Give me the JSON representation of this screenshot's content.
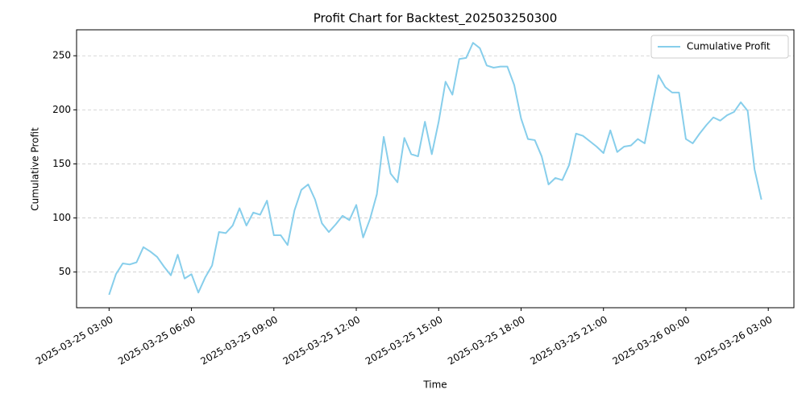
{
  "chart_data": {
    "type": "line",
    "title": "Profit Chart for Backtest_202503250300",
    "xlabel": "Time",
    "ylabel": "Cumulative Profit",
    "x": [
      "2025-03-25 03:00",
      "2025-03-25 03:15",
      "2025-03-25 03:30",
      "2025-03-25 03:45",
      "2025-03-25 04:00",
      "2025-03-25 04:15",
      "2025-03-25 04:30",
      "2025-03-25 04:45",
      "2025-03-25 05:00",
      "2025-03-25 05:15",
      "2025-03-25 05:30",
      "2025-03-25 05:45",
      "2025-03-25 06:00",
      "2025-03-25 06:15",
      "2025-03-25 06:30",
      "2025-03-25 06:45",
      "2025-03-25 07:00",
      "2025-03-25 07:15",
      "2025-03-25 07:30",
      "2025-03-25 07:45",
      "2025-03-25 08:00",
      "2025-03-25 08:15",
      "2025-03-25 08:30",
      "2025-03-25 08:45",
      "2025-03-25 09:00",
      "2025-03-25 09:15",
      "2025-03-25 09:30",
      "2025-03-25 09:45",
      "2025-03-25 10:00",
      "2025-03-25 10:15",
      "2025-03-25 10:30",
      "2025-03-25 10:45",
      "2025-03-25 11:00",
      "2025-03-25 11:15",
      "2025-03-25 11:30",
      "2025-03-25 11:45",
      "2025-03-25 12:00",
      "2025-03-25 12:15",
      "2025-03-25 12:30",
      "2025-03-25 12:45",
      "2025-03-25 13:00",
      "2025-03-25 13:15",
      "2025-03-25 13:30",
      "2025-03-25 13:45",
      "2025-03-25 14:00",
      "2025-03-25 14:15",
      "2025-03-25 14:30",
      "2025-03-25 14:45",
      "2025-03-25 15:00",
      "2025-03-25 15:15",
      "2025-03-25 15:30",
      "2025-03-25 15:45",
      "2025-03-25 16:00",
      "2025-03-25 16:15",
      "2025-03-25 16:30",
      "2025-03-25 16:45",
      "2025-03-25 17:00",
      "2025-03-25 17:15",
      "2025-03-25 17:30",
      "2025-03-25 17:45",
      "2025-03-25 18:00",
      "2025-03-25 18:15",
      "2025-03-25 18:30",
      "2025-03-25 18:45",
      "2025-03-25 19:00",
      "2025-03-25 19:15",
      "2025-03-25 19:30",
      "2025-03-25 19:45",
      "2025-03-25 20:00",
      "2025-03-25 20:15",
      "2025-03-25 20:30",
      "2025-03-25 20:45",
      "2025-03-25 21:00",
      "2025-03-25 21:15",
      "2025-03-25 21:30",
      "2025-03-25 21:45",
      "2025-03-25 22:00",
      "2025-03-25 22:15",
      "2025-03-25 22:30",
      "2025-03-25 22:45",
      "2025-03-25 23:00",
      "2025-03-25 23:15",
      "2025-03-25 23:30",
      "2025-03-25 23:45",
      "2025-03-26 00:00",
      "2025-03-26 00:15",
      "2025-03-26 00:30",
      "2025-03-26 00:45",
      "2025-03-26 01:00",
      "2025-03-26 01:15",
      "2025-03-26 01:30",
      "2025-03-26 01:45",
      "2025-03-26 02:00",
      "2025-03-26 02:15",
      "2025-03-26 02:30",
      "2025-03-26 02:45"
    ],
    "series": [
      {
        "name": "Cumulative Profit",
        "color": "#87ceeb",
        "values": [
          29,
          48,
          58,
          57,
          59,
          73,
          69,
          64,
          55,
          47,
          66,
          44,
          48,
          31,
          45,
          56,
          87,
          86,
          93,
          109,
          93,
          105,
          103,
          116,
          84,
          84,
          75,
          107,
          126,
          131,
          117,
          95,
          87,
          94,
          102,
          98,
          112,
          82,
          99,
          122,
          175,
          141,
          133,
          174,
          159,
          157,
          189,
          159,
          189,
          226,
          214,
          247,
          248,
          262,
          257,
          241,
          239,
          240,
          240,
          223,
          192,
          173,
          172,
          157,
          131,
          137,
          135,
          149,
          178,
          176,
          171,
          166,
          160,
          181,
          161,
          166,
          167,
          173,
          169,
          201,
          232,
          221,
          216,
          216,
          173,
          169,
          178,
          186,
          193,
          190,
          195,
          198,
          207,
          199,
          145,
          117
        ]
      }
    ],
    "xlim": [
      "2025-03-25 01:49",
      "2025-03-26 03:56"
    ],
    "xticks": [
      "2025-03-25 03:00",
      "2025-03-25 06:00",
      "2025-03-25 09:00",
      "2025-03-25 12:00",
      "2025-03-25 15:00",
      "2025-03-25 18:00",
      "2025-03-25 21:00",
      "2025-03-26 00:00",
      "2025-03-26 03:00"
    ],
    "ylim": [
      17,
      274
    ],
    "yticks": [
      50,
      100,
      150,
      200,
      250
    ],
    "grid": "y",
    "legend": "upper right"
  }
}
